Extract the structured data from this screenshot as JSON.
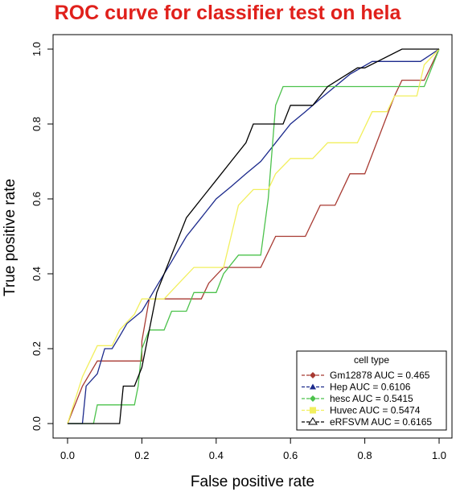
{
  "chart_data": {
    "type": "line",
    "title": "ROC curve for classifier test on hela",
    "title_color": "#e0201b",
    "xlabel": "False positive rate",
    "ylabel": "True positive rate",
    "xlim": [
      0,
      1
    ],
    "ylim": [
      0,
      1
    ],
    "x_ticks": [
      "0.0",
      "0.2",
      "0.4",
      "0.6",
      "0.8",
      "1.0"
    ],
    "y_ticks": [
      "0.0",
      "0.2",
      "0.4",
      "0.6",
      "0.8",
      "1.0"
    ],
    "grid": false,
    "legend": {
      "title": "cell type",
      "position": "bottom-right",
      "entries": [
        "Gm12878 AUC = 0.465",
        "Hep AUC = 0.6106",
        "hesc AUC = 0.5415",
        "Huvec AUC = 0.5474",
        "eRFSVM AUC = 0.6165"
      ]
    },
    "series": [
      {
        "color": "#a83a32",
        "marker": "diamond",
        "points": [
          [
            0,
            0
          ],
          [
            0.04,
            0.1
          ],
          [
            0.08,
            0.167
          ],
          [
            0.2,
            0.167
          ],
          [
            0.2,
            0.22
          ],
          [
            0.22,
            0.333
          ],
          [
            0.36,
            0.333
          ],
          [
            0.38,
            0.375
          ],
          [
            0.42,
            0.417
          ],
          [
            0.52,
            0.417
          ],
          [
            0.56,
            0.5
          ],
          [
            0.64,
            0.5
          ],
          [
            0.68,
            0.583
          ],
          [
            0.72,
            0.583
          ],
          [
            0.76,
            0.667
          ],
          [
            0.8,
            0.667
          ],
          [
            0.88,
            0.875
          ],
          [
            0.9,
            0.917
          ],
          [
            0.96,
            0.917
          ],
          [
            1,
            1
          ]
        ]
      },
      {
        "color": "#1c2a8c",
        "marker": "triangle",
        "points": [
          [
            0,
            0
          ],
          [
            0.04,
            0
          ],
          [
            0.05,
            0.1
          ],
          [
            0.08,
            0.133
          ],
          [
            0.1,
            0.2
          ],
          [
            0.12,
            0.2
          ],
          [
            0.14,
            0.233
          ],
          [
            0.16,
            0.267
          ],
          [
            0.2,
            0.3
          ],
          [
            0.24,
            0.367
          ],
          [
            0.28,
            0.433
          ],
          [
            0.32,
            0.5
          ],
          [
            0.36,
            0.55
          ],
          [
            0.4,
            0.6
          ],
          [
            0.44,
            0.633
          ],
          [
            0.48,
            0.667
          ],
          [
            0.52,
            0.7
          ],
          [
            0.56,
            0.75
          ],
          [
            0.6,
            0.8
          ],
          [
            0.64,
            0.833
          ],
          [
            0.68,
            0.867
          ],
          [
            0.72,
            0.9
          ],
          [
            0.76,
            0.933
          ],
          [
            0.82,
            0.967
          ],
          [
            0.9,
            0.967
          ],
          [
            0.95,
            0.967
          ],
          [
            1,
            1
          ]
        ]
      },
      {
        "color": "#4cc24c",
        "marker": "circle",
        "points": [
          [
            0,
            0
          ],
          [
            0.07,
            0
          ],
          [
            0.08,
            0.05
          ],
          [
            0.18,
            0.05
          ],
          [
            0.19,
            0.1
          ],
          [
            0.2,
            0.2
          ],
          [
            0.22,
            0.25
          ],
          [
            0.26,
            0.25
          ],
          [
            0.28,
            0.3
          ],
          [
            0.32,
            0.3
          ],
          [
            0.34,
            0.35
          ],
          [
            0.4,
            0.35
          ],
          [
            0.42,
            0.4
          ],
          [
            0.46,
            0.45
          ],
          [
            0.52,
            0.45
          ],
          [
            0.54,
            0.6
          ],
          [
            0.56,
            0.85
          ],
          [
            0.58,
            0.9
          ],
          [
            0.96,
            0.9
          ],
          [
            0.98,
            0.95
          ],
          [
            1,
            1
          ]
        ]
      },
      {
        "color": "#f2ef5e",
        "marker": "square",
        "points": [
          [
            0,
            0
          ],
          [
            0.04,
            0.125
          ],
          [
            0.08,
            0.208
          ],
          [
            0.12,
            0.208
          ],
          [
            0.14,
            0.25
          ],
          [
            0.18,
            0.292
          ],
          [
            0.2,
            0.333
          ],
          [
            0.26,
            0.333
          ],
          [
            0.3,
            0.375
          ],
          [
            0.34,
            0.417
          ],
          [
            0.42,
            0.417
          ],
          [
            0.44,
            0.5
          ],
          [
            0.46,
            0.583
          ],
          [
            0.5,
            0.625
          ],
          [
            0.54,
            0.625
          ],
          [
            0.56,
            0.667
          ],
          [
            0.6,
            0.708
          ],
          [
            0.66,
            0.708
          ],
          [
            0.7,
            0.75
          ],
          [
            0.78,
            0.75
          ],
          [
            0.82,
            0.833
          ],
          [
            0.86,
            0.833
          ],
          [
            0.88,
            0.875
          ],
          [
            0.94,
            0.875
          ],
          [
            0.96,
            0.958
          ],
          [
            1,
            1
          ]
        ]
      },
      {
        "color": "#000000",
        "marker": "open-triangle",
        "points": [
          [
            0,
            0
          ],
          [
            0.14,
            0
          ],
          [
            0.15,
            0.1
          ],
          [
            0.18,
            0.1
          ],
          [
            0.2,
            0.15
          ],
          [
            0.24,
            0.35
          ],
          [
            0.28,
            0.45
          ],
          [
            0.3,
            0.5
          ],
          [
            0.32,
            0.55
          ],
          [
            0.36,
            0.6
          ],
          [
            0.4,
            0.65
          ],
          [
            0.44,
            0.7
          ],
          [
            0.48,
            0.75
          ],
          [
            0.5,
            0.8
          ],
          [
            0.58,
            0.8
          ],
          [
            0.6,
            0.85
          ],
          [
            0.66,
            0.85
          ],
          [
            0.7,
            0.9
          ],
          [
            0.78,
            0.95
          ],
          [
            0.8,
            0.95
          ],
          [
            0.9,
            1
          ],
          [
            1,
            1
          ]
        ]
      }
    ]
  }
}
